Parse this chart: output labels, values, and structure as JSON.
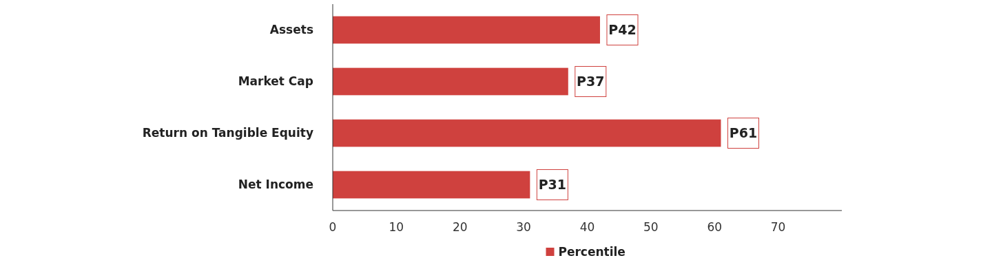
{
  "chart_data": {
    "type": "bar",
    "orientation": "horizontal",
    "categories": [
      "Assets",
      "Market Cap",
      "Return on Tangible Equity",
      "Net Income"
    ],
    "series": [
      {
        "name": "Percentile",
        "color": "#cf413e",
        "values": [
          42,
          37,
          61,
          31
        ],
        "value_labels": [
          "P42",
          "P37",
          "P61",
          "P31"
        ]
      }
    ],
    "xlim": [
      0,
      80
    ],
    "xticks": [
      0,
      10,
      20,
      30,
      40,
      50,
      60,
      70
    ],
    "grid": false,
    "legend": "bottom"
  }
}
